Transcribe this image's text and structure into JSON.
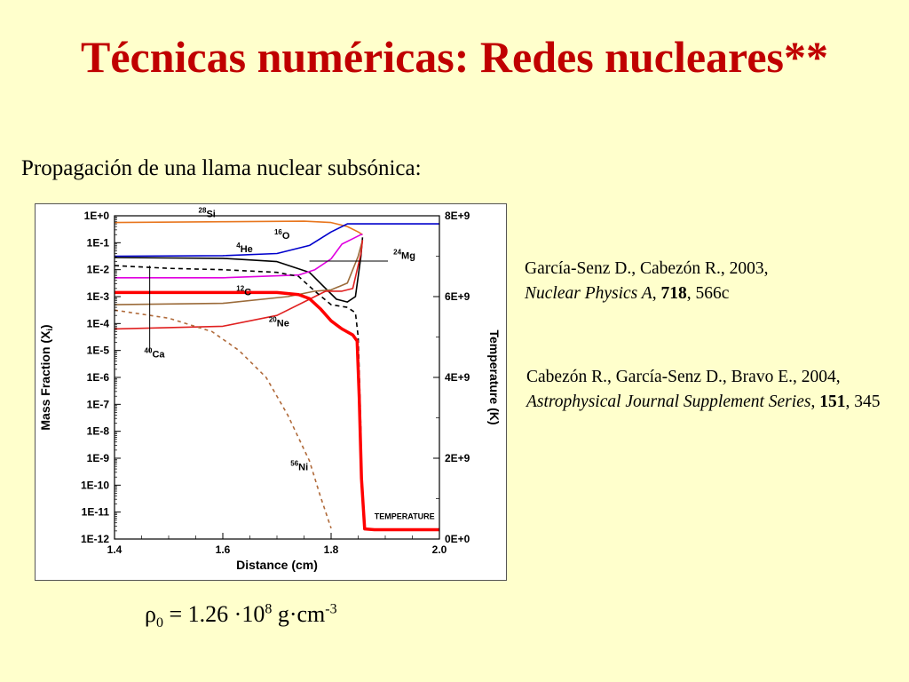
{
  "slide": {
    "title": "Técnicas numéricas: Redes nucleares**",
    "subtitle": "Propagación de una llama nuclear subsónica:",
    "formula": {
      "symbol": "ρ",
      "subscript": "0",
      "equals": "=",
      "value": "1.26",
      "dot": "·",
      "base": "10",
      "exponent": "8",
      "unit_g": "g",
      "unit_dot": "·",
      "unit_cm": "cm",
      "unit_exponent": "-3"
    },
    "references": [
      {
        "authors": "García-Senz D., Cabezón R., 2003,",
        "journal": "Nuclear Physics A",
        "sep1": ", ",
        "volume": "718",
        "sep2": ", ",
        "page": "566c"
      },
      {
        "authors": "Cabezón R., García-Senz D., Bravo E., 2004,",
        "journal": "Astrophysical Journal Supplement Series",
        "sep1": ", ",
        "volume": "151",
        "sep2": ", ",
        "page": "345"
      }
    ]
  },
  "chart_data": {
    "type": "line",
    "xlabel": "Distance (cm)",
    "ylabel_left": "Mass Fraction (X",
    "ylabel_left_sub": "i",
    "ylabel_left_end": ")",
    "ylabel_right": "Temperature (K)",
    "xlim": [
      1.4,
      2.0
    ],
    "ylim_log10": [
      -12,
      0
    ],
    "y2lim": [
      0,
      8000000000.0
    ],
    "x_ticks": [
      "1.4",
      "1.6",
      "1.8",
      "2.0"
    ],
    "x_tick_values": [
      1.4,
      1.6,
      1.8,
      2.0
    ],
    "y_ticks": [
      "1E+0",
      "1E-1",
      "1E-2",
      "1E-3",
      "1E-4",
      "1E-5",
      "1E-6",
      "1E-7",
      "1E-8",
      "1E-9",
      "1E-10",
      "1E-11",
      "1E-12"
    ],
    "y_tick_values": [
      0,
      -1,
      -2,
      -3,
      -4,
      -5,
      -6,
      -7,
      -8,
      -9,
      -10,
      -11,
      -12
    ],
    "y2_ticks": [
      "8E+9",
      "6E+9",
      "4E+9",
      "2E+9",
      "0E+0"
    ],
    "y2_tick_values": [
      8000000000.0,
      6000000000.0,
      4000000000.0,
      2000000000.0,
      0
    ],
    "series_labels": {
      "si28": {
        "mass": "28",
        "el": "Si"
      },
      "o16": {
        "mass": "16",
        "el": "O"
      },
      "he4": {
        "mass": "4",
        "el": "He"
      },
      "mg24": {
        "mass": "24",
        "el": "Mg"
      },
      "c12": {
        "mass": "12",
        "el": "C"
      },
      "ne20": {
        "mass": "20",
        "el": "Ne"
      },
      "ca40": {
        "mass": "40",
        "el": "Ca"
      },
      "ni56": {
        "mass": "56",
        "el": "Ni"
      },
      "temperature": {
        "mass": "",
        "el": "TEMPERATURE"
      }
    },
    "series": [
      {
        "key": "si28",
        "color": "#E8761E",
        "dash": "",
        "width": 1.6,
        "axis": "left",
        "points": [
          [
            1.4,
            -0.25
          ],
          [
            1.6,
            -0.22
          ],
          [
            1.75,
            -0.2
          ],
          [
            1.8,
            -0.25
          ],
          [
            1.83,
            -0.4
          ],
          [
            1.85,
            -0.6
          ],
          [
            1.858,
            -0.7
          ]
        ]
      },
      {
        "key": "o16",
        "color": "#0000CC",
        "dash": "",
        "width": 1.6,
        "axis": "left",
        "points": [
          [
            1.4,
            -1.5
          ],
          [
            1.6,
            -1.48
          ],
          [
            1.7,
            -1.4
          ],
          [
            1.76,
            -1.1
          ],
          [
            1.8,
            -0.6
          ],
          [
            1.83,
            -0.3
          ],
          [
            1.85,
            -0.3
          ],
          [
            1.86,
            -0.3
          ],
          [
            2.0,
            -0.3
          ]
        ]
      },
      {
        "key": "he4",
        "color": "#000000",
        "dash": "",
        "width": 1.6,
        "axis": "left",
        "points": [
          [
            1.4,
            -1.55
          ],
          [
            1.6,
            -1.58
          ],
          [
            1.7,
            -1.7
          ],
          [
            1.76,
            -2.1
          ],
          [
            1.79,
            -2.7
          ],
          [
            1.81,
            -3.1
          ],
          [
            1.83,
            -3.2
          ],
          [
            1.845,
            -3.0
          ],
          [
            1.855,
            -1.5
          ],
          [
            1.858,
            -0.8
          ]
        ]
      },
      {
        "key": "mg24",
        "color": "#E000E0",
        "dash": "",
        "width": 1.6,
        "axis": "left",
        "points": [
          [
            1.4,
            -2.3
          ],
          [
            1.6,
            -2.3
          ],
          [
            1.74,
            -2.2
          ],
          [
            1.77,
            -2.0
          ],
          [
            1.8,
            -1.6
          ],
          [
            1.82,
            -1.05
          ],
          [
            1.84,
            -0.85
          ],
          [
            1.855,
            -0.7
          ],
          [
            1.858,
            -0.7
          ]
        ]
      },
      {
        "key": "c12",
        "color": "#9B6B3A",
        "dash": "",
        "width": 1.6,
        "axis": "left",
        "points": [
          [
            1.4,
            -3.3
          ],
          [
            1.6,
            -3.25
          ],
          [
            1.72,
            -3.0
          ],
          [
            1.77,
            -2.8
          ],
          [
            1.8,
            -2.75
          ],
          [
            1.83,
            -2.5
          ],
          [
            1.85,
            -1.5
          ],
          [
            1.858,
            -0.9
          ]
        ]
      },
      {
        "key": "ne20",
        "color": "#E02020",
        "dash": "",
        "width": 1.6,
        "axis": "left",
        "points": [
          [
            1.4,
            -4.2
          ],
          [
            1.6,
            -4.1
          ],
          [
            1.7,
            -3.7
          ],
          [
            1.76,
            -3.1
          ],
          [
            1.79,
            -2.8
          ],
          [
            1.82,
            -2.8
          ],
          [
            1.84,
            -2.7
          ],
          [
            1.855,
            -1.4
          ],
          [
            1.858,
            -0.9
          ]
        ]
      },
      {
        "key": "ca40",
        "color": "#000000",
        "dash": "5,4",
        "width": 1.6,
        "axis": "left",
        "points": [
          [
            1.4,
            -1.85
          ],
          [
            1.5,
            -1.95
          ],
          [
            1.6,
            -2.0
          ],
          [
            1.7,
            -2.1
          ],
          [
            1.74,
            -2.25
          ],
          [
            1.77,
            -2.8
          ],
          [
            1.8,
            -3.3
          ],
          [
            1.83,
            -3.4
          ],
          [
            1.845,
            -3.6
          ],
          [
            1.85,
            -4.5
          ],
          [
            1.853,
            -6.5
          ],
          [
            1.855,
            -8.0
          ]
        ]
      },
      {
        "key": "ni56",
        "color": "#B06A3A",
        "dash": "4,4",
        "width": 1.6,
        "axis": "left",
        "points": [
          [
            1.4,
            -3.5
          ],
          [
            1.5,
            -3.8
          ],
          [
            1.58,
            -4.3
          ],
          [
            1.63,
            -5.0
          ],
          [
            1.68,
            -6.0
          ],
          [
            1.72,
            -7.4
          ],
          [
            1.76,
            -9.1
          ],
          [
            1.78,
            -10.4
          ],
          [
            1.8,
            -11.6
          ]
        ]
      },
      {
        "key": "temperature",
        "color": "#FF0000",
        "dash": "",
        "width": 3.5,
        "axis": "right",
        "points": [
          [
            1.4,
            6100000000.0
          ],
          [
            1.7,
            6100000000.0
          ],
          [
            1.74,
            6050000000.0
          ],
          [
            1.76,
            5950000000.0
          ],
          [
            1.78,
            5700000000.0
          ],
          [
            1.8,
            5400000000.0
          ],
          [
            1.82,
            5200000000.0
          ],
          [
            1.84,
            5050000000.0
          ],
          [
            1.848,
            4900000000.0
          ],
          [
            1.852,
            3500000000.0
          ],
          [
            1.856,
            1500000000.0
          ],
          [
            1.862,
            250000000.0
          ],
          [
            1.88,
            230000000.0
          ],
          [
            2.0,
            230000000.0
          ]
        ]
      }
    ]
  }
}
